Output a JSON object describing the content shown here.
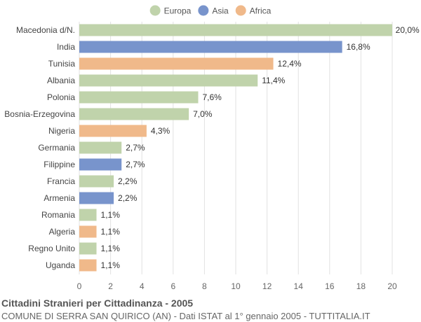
{
  "chart_data": {
    "type": "bar",
    "orientation": "horizontal",
    "title": "Cittadini Stranieri per Cittadinanza - 2005",
    "subtitle": "COMUNE DI SERRA SAN QUIRICO (AN) - Dati ISTAT al 1° gennaio 2005 - TUTTITALIA.IT",
    "legend": {
      "position": "top-center",
      "items": [
        {
          "name": "Europa",
          "color": "#c0d3ab"
        },
        {
          "name": "Asia",
          "color": "#7894cc"
        },
        {
          "name": "Africa",
          "color": "#f0b98a"
        }
      ]
    },
    "xlim": [
      0,
      20
    ],
    "xticks": [
      "0",
      "2",
      "4",
      "6",
      "8",
      "10",
      "12",
      "14",
      "16",
      "18",
      "20"
    ],
    "grid": true,
    "bars": [
      {
        "category": "Macedonia d/N.",
        "value": 20.0,
        "label": "20,0%",
        "group": "Europa"
      },
      {
        "category": "India",
        "value": 16.8,
        "label": "16,8%",
        "group": "Asia"
      },
      {
        "category": "Tunisia",
        "value": 12.4,
        "label": "12,4%",
        "group": "Africa"
      },
      {
        "category": "Albania",
        "value": 11.4,
        "label": "11,4%",
        "group": "Europa"
      },
      {
        "category": "Polonia",
        "value": 7.6,
        "label": "7,6%",
        "group": "Europa"
      },
      {
        "category": "Bosnia-Erzegovina",
        "value": 7.0,
        "label": "7,0%",
        "group": "Europa"
      },
      {
        "category": "Nigeria",
        "value": 4.3,
        "label": "4,3%",
        "group": "Africa"
      },
      {
        "category": "Germania",
        "value": 2.7,
        "label": "2,7%",
        "group": "Europa"
      },
      {
        "category": "Filippine",
        "value": 2.7,
        "label": "2,7%",
        "group": "Asia"
      },
      {
        "category": "Francia",
        "value": 2.2,
        "label": "2,2%",
        "group": "Europa"
      },
      {
        "category": "Armenia",
        "value": 2.2,
        "label": "2,2%",
        "group": "Asia"
      },
      {
        "category": "Romania",
        "value": 1.1,
        "label": "1,1%",
        "group": "Europa"
      },
      {
        "category": "Algeria",
        "value": 1.1,
        "label": "1,1%",
        "group": "Africa"
      },
      {
        "category": "Regno Unito",
        "value": 1.1,
        "label": "1,1%",
        "group": "Europa"
      },
      {
        "category": "Uganda",
        "value": 1.1,
        "label": "1,1%",
        "group": "Africa"
      }
    ]
  },
  "colors": {
    "grid": "#e2e2e2",
    "background": "#ffffff"
  }
}
